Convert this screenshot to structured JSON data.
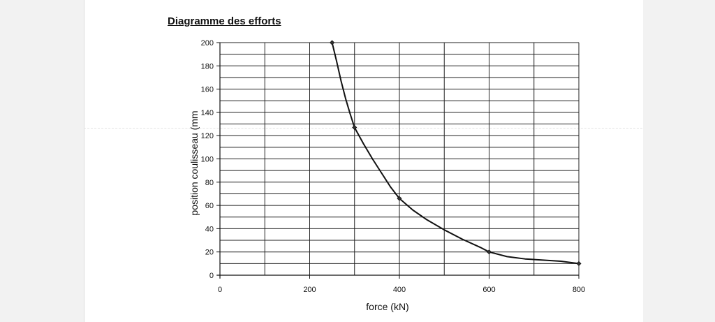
{
  "chart_data": {
    "type": "line",
    "title": "Diagramme des efforts",
    "xlabel": "force  (kN)",
    "ylabel": "position coulisseau (mm",
    "xlim": [
      0,
      800
    ],
    "ylim": [
      0,
      200
    ],
    "x_ticks": [
      0,
      200,
      400,
      600,
      800
    ],
    "y_ticks": [
      0,
      20,
      40,
      60,
      80,
      100,
      120,
      140,
      160,
      180,
      200
    ],
    "x_grid_step": 100,
    "y_grid_step": 10,
    "grid": true,
    "series": [
      {
        "x": [
          250,
          300,
          400,
          600,
          800
        ],
        "y": [
          200,
          127,
          66,
          20,
          10
        ],
        "curve_x": [
          250,
          260,
          270,
          280,
          290,
          300,
          320,
          340,
          360,
          380,
          400,
          430,
          460,
          500,
          540,
          580,
          600,
          640,
          680,
          720,
          760,
          800
        ],
        "curve_y": [
          200,
          184,
          167,
          152,
          139,
          127,
          113,
          100,
          88,
          76,
          66,
          56,
          48,
          39,
          31,
          24,
          20,
          16,
          14,
          13,
          12,
          10
        ],
        "color": "#111111"
      }
    ]
  }
}
